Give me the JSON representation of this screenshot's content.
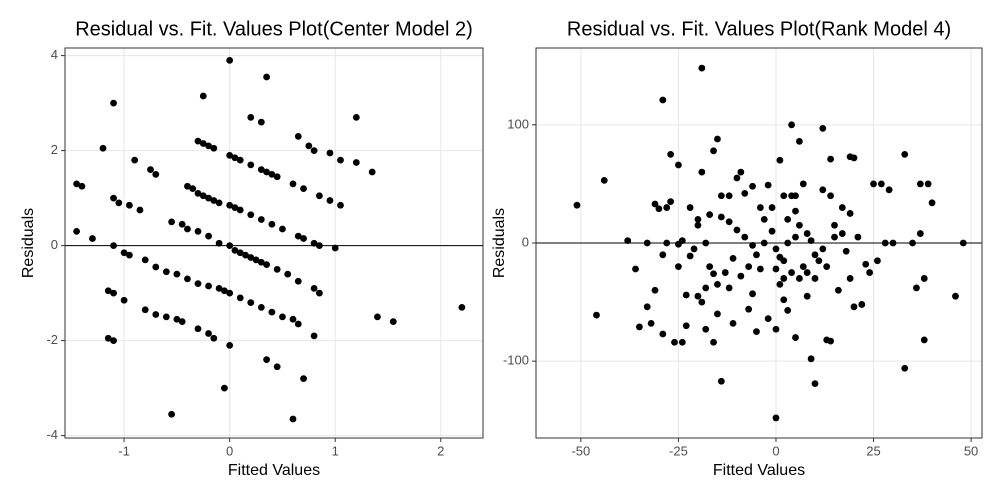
{
  "chart_data": [
    {
      "type": "scatter",
      "title": "Residual vs. Fit. Values Plot(Center Model 2)",
      "xlabel": "Fitted Values",
      "ylabel": "Residuals",
      "color": "#000000",
      "hline": 0,
      "grid": true,
      "xlim": [
        -1.56,
        2.4
      ],
      "ylim": [
        -4.05,
        4.16
      ],
      "xticks": [
        -1,
        0,
        1,
        2
      ],
      "yticks": [
        -4,
        -2,
        0,
        2,
        4
      ],
      "x": [
        -0.3,
        -0.25,
        -0.2,
        -0.15,
        0,
        0.05,
        0.1,
        0.2,
        0.3,
        0.35,
        0.4,
        0.45,
        0.6,
        0.7,
        0.85,
        -0.4,
        -0.35,
        -0.3,
        -0.25,
        -0.2,
        -0.15,
        -0.1,
        0,
        0.05,
        0.1,
        0.2,
        0.3,
        0.4,
        0.5,
        0.65,
        0.7,
        0.8,
        0.85,
        1.0,
        -1.1,
        -1.05,
        -0.95,
        -0.85,
        -0.55,
        -0.45,
        -0.4,
        -0.3,
        -0.2,
        -0.1,
        0,
        0.05,
        0.1,
        0.15,
        0.2,
        0.25,
        0.3,
        0.35,
        0.45,
        0.55,
        0.65,
        0.8,
        0.85,
        -1.0,
        -0.95,
        -0.8,
        -0.7,
        -0.6,
        -0.5,
        -0.4,
        -0.3,
        -0.2,
        -0.1,
        -0.05,
        0,
        0.1,
        0.2,
        0.3,
        0.4,
        0.5,
        0.6,
        0.65,
        0.8,
        -1.15,
        -1.1,
        -1.0,
        -0.8,
        -0.7,
        -0.6,
        -0.5,
        -0.45,
        -0.3,
        -0.2,
        -0.15,
        0,
        -1.45,
        -1.4,
        -1.45,
        -1.3,
        -1.2,
        -1.1,
        -0.9,
        -0.75,
        -0.7,
        -1.15,
        -1.1,
        -0.55,
        -0.05,
        0,
        -0.25,
        0.2,
        0.3,
        0.35,
        0.6,
        0.35,
        0.45,
        0.7,
        0.65,
        0.75,
        0.8,
        0.95,
        1.05,
        1.2,
        1.35,
        1.2,
        0.95,
        1.05,
        1.4,
        1.55,
        2.2,
        -1.1
      ],
      "values": [
        2.2,
        2.15,
        2.1,
        2.05,
        1.9,
        1.85,
        1.8,
        1.7,
        1.6,
        1.55,
        1.5,
        1.45,
        1.3,
        1.2,
        1.05,
        1.25,
        1.2,
        1.1,
        1.05,
        1.0,
        0.95,
        0.9,
        0.85,
        0.8,
        0.75,
        0.65,
        0.55,
        0.45,
        0.35,
        0.2,
        0.15,
        0.05,
        0.0,
        -0.05,
        1.0,
        0.9,
        0.85,
        0.75,
        0.5,
        0.45,
        0.35,
        0.3,
        0.2,
        0.05,
        0.0,
        -0.1,
        -0.15,
        -0.2,
        -0.25,
        -0.3,
        -0.35,
        -0.4,
        -0.5,
        -0.6,
        -0.75,
        -0.9,
        -1.0,
        -0.15,
        -0.2,
        -0.3,
        -0.45,
        -0.55,
        -0.6,
        -0.7,
        -0.8,
        -0.85,
        -0.9,
        -0.95,
        -1.0,
        -1.1,
        -1.2,
        -1.3,
        -1.4,
        -1.5,
        -1.55,
        -1.65,
        -1.9,
        -0.95,
        -1.0,
        -1.15,
        -1.35,
        -1.45,
        -1.5,
        -1.55,
        -1.6,
        -1.75,
        -1.85,
        -1.95,
        -2.1,
        1.3,
        1.25,
        0.3,
        0.15,
        2.05,
        3.0,
        1.8,
        1.6,
        1.5,
        -1.95,
        -2.0,
        -3.55,
        -3.0,
        3.9,
        3.15,
        2.7,
        2.6,
        3.55,
        -3.65,
        -2.4,
        -2.55,
        -2.8,
        2.3,
        2.1,
        2.0,
        1.95,
        1.8,
        1.75,
        1.55,
        2.7,
        0.95,
        0.85,
        -1.5,
        -1.6,
        -1.3,
        0.0
      ]
    },
    {
      "type": "scatter",
      "title": "Residual vs. Fit. Values Plot(Rank Model 4)",
      "xlabel": "Fitted Values",
      "ylabel": "Residuals",
      "color": "#000000",
      "hline": 0,
      "grid": true,
      "xlim": [
        -61.5,
        52.8
      ],
      "ylim": [
        -165,
        165
      ],
      "xticks": [
        -50,
        -25,
        0,
        25,
        50
      ],
      "yticks": [
        -100,
        0,
        100
      ],
      "x": [
        -51,
        -44,
        -19,
        -29,
        -46,
        -36,
        -35,
        -32,
        -29,
        -26,
        -24,
        -20,
        -18,
        -14,
        -16,
        -15,
        -11,
        -7,
        -5,
        -2,
        0,
        0,
        1,
        2,
        3,
        5,
        9,
        10,
        13,
        14,
        20,
        22,
        24,
        33,
        38,
        38,
        46,
        48,
        37,
        39,
        40,
        33,
        29,
        27,
        25,
        20,
        19,
        14,
        12,
        6,
        4,
        -15,
        -16,
        -9,
        -19,
        -25,
        -27,
        -30,
        -28,
        -25,
        -28,
        -29,
        -31,
        -33,
        -23,
        -22,
        -18,
        -20,
        -17,
        -14,
        -12,
        -10,
        -8,
        -6,
        -4,
        -2,
        1,
        2,
        4,
        5,
        6,
        8,
        9,
        10,
        11,
        12,
        13,
        15,
        17,
        18,
        19,
        21,
        23,
        26,
        28,
        30,
        35,
        36,
        37,
        -38,
        -33,
        -24,
        -21,
        -17,
        -15,
        -13,
        -11,
        -9,
        -7,
        -5,
        -3,
        -1,
        0,
        1,
        3,
        5,
        7,
        8,
        10,
        3,
        5,
        7,
        -6,
        -8,
        -10,
        -12,
        -14,
        -3,
        -1,
        2,
        4,
        6,
        8,
        15,
        16,
        14,
        17,
        19,
        12,
        -20,
        -18,
        -22,
        -27,
        -31,
        -25,
        -23,
        -19,
        -16,
        -12,
        -6,
        -4,
        0,
        2
      ],
      "values": [
        32,
        53,
        148,
        121,
        -61,
        -22,
        -71,
        -68,
        -77,
        -84,
        -84,
        -45,
        -73,
        -117,
        -84,
        -60,
        -68,
        -56,
        -75,
        -64,
        -73,
        -148,
        -35,
        -48,
        -57,
        -80,
        -98,
        -119,
        -82,
        -83,
        -54,
        -52,
        -25,
        -106,
        -30,
        -82,
        -45,
        0,
        50,
        50,
        34,
        75,
        45,
        50,
        50,
        72,
        73,
        71,
        97,
        86,
        100,
        88,
        78,
        60,
        60,
        66,
        75,
        29,
        30,
        -1,
        0,
        -10,
        -40,
        -54,
        -44,
        -11,
        -38,
        15,
        24,
        22,
        18,
        11,
        5,
        -2,
        30,
        49,
        70,
        40,
        40,
        27,
        15,
        8,
        2,
        -10,
        -15,
        -5,
        -20,
        5,
        8,
        -7,
        -30,
        5,
        -18,
        -15,
        0,
        0,
        0,
        -38,
        8,
        2,
        0,
        2,
        -5,
        -20,
        -35,
        -25,
        -13,
        -28,
        -20,
        -10,
        0,
        10,
        -5,
        -12,
        0,
        5,
        -20,
        -25,
        -30,
        20,
        40,
        50,
        48,
        42,
        55,
        40,
        40,
        20,
        30,
        -15,
        -25,
        -30,
        -45,
        15,
        -40,
        40,
        30,
        25,
        45,
        20,
        0,
        30,
        35,
        33,
        -20,
        -70,
        -50,
        -26,
        -38,
        -43,
        -22,
        -22,
        -30
      ]
    }
  ]
}
